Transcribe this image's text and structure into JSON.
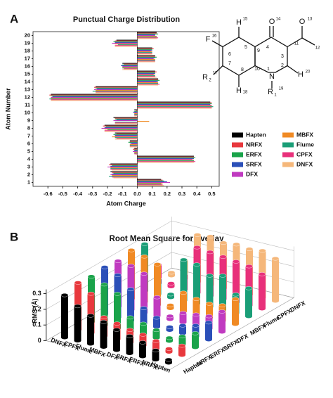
{
  "chart_data": [
    {
      "type": "barh",
      "panel": "A",
      "title": "Punctual Charge Distribution",
      "xlabel": "Atom Charge",
      "ylabel": "Atom Number",
      "categories": [
        "1",
        "2",
        "3",
        "4",
        "5",
        "6",
        "7",
        "8",
        "9",
        "10",
        "11",
        "12",
        "13",
        "14",
        "15",
        "16",
        "17",
        "18",
        "19",
        "20"
      ],
      "xlim": [
        -0.7,
        0.55
      ],
      "xticks": [
        -0.6,
        -0.5,
        -0.4,
        -0.3,
        -0.2,
        -0.1,
        {
          "value": 0,
          "label": "0.0"
        },
        0.1,
        0.2,
        0.3,
        0.4,
        0.5
      ],
      "series": [
        {
          "name": "Hapten",
          "color": "#000000",
          "values": [
            0.16,
            -0.18,
            -0.18,
            0.38,
            -0.02,
            -0.05,
            -0.15,
            -0.22,
            -0.16,
            -0.02,
            0.49,
            -0.58,
            -0.28,
            0.14,
            0.12,
            -0.1,
            0.12,
            0.1,
            -0.14,
            0.13
          ]
        },
        {
          "name": "NRFX",
          "color": "#e8383d",
          "values": [
            0.17,
            -0.17,
            -0.19,
            0.38,
            -0.03,
            -0.05,
            -0.14,
            -0.23,
            -0.15,
            -0.01,
            0.5,
            -0.59,
            -0.29,
            0.14,
            0.13,
            -0.09,
            0.12,
            0.11,
            -0.15,
            0.13
          ]
        },
        {
          "name": "ERFX",
          "color": "#1aa34a",
          "values": [
            0.18,
            -0.16,
            -0.17,
            0.39,
            -0.02,
            -0.06,
            -0.16,
            -0.21,
            -0.15,
            -0.02,
            0.5,
            -0.58,
            -0.28,
            0.15,
            0.12,
            -0.1,
            0.13,
            0.1,
            -0.16,
            0.14
          ]
        },
        {
          "name": "SRFX",
          "color": "#2b4fb8",
          "values": [
            0.2,
            -0.17,
            -0.18,
            0.38,
            -0.02,
            -0.05,
            -0.15,
            -0.22,
            -0.14,
            -0.03,
            0.49,
            -0.57,
            -0.27,
            0.14,
            0.12,
            -0.11,
            0.12,
            0.1,
            -0.15,
            0.12
          ]
        },
        {
          "name": "DFX",
          "color": "#c03ac0",
          "values": [
            0.22,
            -0.18,
            -0.2,
            0.37,
            -0.03,
            -0.04,
            -0.15,
            -0.24,
            -0.16,
            -0.02,
            0.5,
            -0.58,
            -0.29,
            0.13,
            0.11,
            -0.1,
            0.11,
            0.09,
            -0.17,
            0.12
          ]
        },
        {
          "name": "MBFX",
          "color": "#f08a24",
          "values": [
            0.17,
            -0.17,
            -0.18,
            0.38,
            -0.02,
            -0.05,
            -0.17,
            -0.22,
            0.08,
            -0.02,
            0.5,
            -0.58,
            -0.28,
            0.14,
            0.12,
            -0.1,
            0.12,
            0.1,
            -0.15,
            0.13
          ]
        },
        {
          "name": "Flume",
          "color": "#1a9e77",
          "values": [
            0.16,
            -0.19,
            -0.18,
            0.38,
            -0.02,
            -0.05,
            -0.15,
            -0.2,
            -0.15,
            -0.02,
            0.51,
            -0.59,
            -0.3,
            0.14,
            0.12,
            -0.1,
            0.12,
            0.1,
            -0.13,
            0.13
          ]
        },
        {
          "name": "CPFX",
          "color": "#e8307a",
          "values": [
            0.17,
            -0.17,
            -0.18,
            0.39,
            -0.02,
            -0.05,
            -0.14,
            -0.22,
            -0.15,
            -0.02,
            0.5,
            -0.58,
            -0.28,
            0.15,
            0.12,
            -0.09,
            0.12,
            0.1,
            -0.15,
            0.14
          ]
        },
        {
          "name": "DNFX",
          "color": "#f5b77a",
          "values": [
            0.18,
            -0.16,
            -0.17,
            0.38,
            -0.01,
            -0.05,
            -0.15,
            -0.22,
            -0.15,
            -0.02,
            0.5,
            -0.58,
            -0.28,
            0.14,
            0.13,
            -0.1,
            0.12,
            0.1,
            -0.15,
            0.13
          ]
        }
      ]
    },
    {
      "type": "bar3d",
      "panel": "B",
      "title": "Root Mean Square for overlay",
      "ylabel": "RMS (Å)",
      "categories": [
        "DNFX",
        "CPFX",
        "Flume",
        "MBFX",
        "DFX",
        "SRFX",
        "ERFX",
        "NRFX",
        "Hapten"
      ],
      "ylim": [
        0,
        0.3
      ],
      "yticks": [
        0,
        0.1,
        0.2,
        0.3
      ],
      "series": [
        {
          "name": "Hapten",
          "color": "#000000",
          "values": [
            0.27,
            0.22,
            0.18,
            0.16,
            0.13,
            0.11,
            0.09,
            0.06,
            0.02
          ]
        },
        {
          "name": "NRFX",
          "color": "#e8383d",
          "values": [
            0.3,
            0.25,
            0.12,
            0.1,
            0.08,
            0.07,
            0.05,
            0.02,
            0.06
          ]
        },
        {
          "name": "ERFX",
          "color": "#1aa34a",
          "values": [
            0.29,
            0.26,
            0.22,
            0.09,
            0.07,
            0.05,
            0.02,
            0.05,
            0.09
          ]
        },
        {
          "name": "SRFX",
          "color": "#2b4fb8",
          "values": [
            0.3,
            0.27,
            0.2,
            0.1,
            0.06,
            0.02,
            0.05,
            0.07,
            0.11
          ]
        },
        {
          "name": "DFX",
          "color": "#c03ac0",
          "values": [
            0.29,
            0.28,
            0.25,
            0.12,
            0.02,
            0.06,
            0.07,
            0.08,
            0.13
          ]
        },
        {
          "name": "MBFX",
          "color": "#f08a24",
          "values": [
            0.31,
            0.29,
            0.26,
            0.02,
            0.12,
            0.1,
            0.09,
            0.1,
            0.16
          ]
        },
        {
          "name": "Flume",
          "color": "#1a9e77",
          "values": [
            0.3,
            0.1,
            0.02,
            0.26,
            0.25,
            0.2,
            0.22,
            0.12,
            0.18
          ]
        },
        {
          "name": "CPFX",
          "color": "#e8307a",
          "values": [
            0.12,
            0.02,
            0.1,
            0.29,
            0.28,
            0.27,
            0.26,
            0.25,
            0.22
          ]
        },
        {
          "name": "DNFX",
          "color": "#f5b77a",
          "values": [
            0.02,
            0.12,
            0.3,
            0.31,
            0.29,
            0.3,
            0.29,
            0.3,
            0.27
          ]
        }
      ]
    }
  ],
  "structure": {
    "labels": [
      "H",
      "15",
      "O",
      "14",
      "O",
      "13",
      "11",
      "12",
      "4",
      "3",
      "2",
      "1",
      "N",
      "H",
      "20",
      "5",
      "6",
      "7",
      "8",
      "9",
      "10",
      "F",
      "16",
      "R",
      "2",
      "17",
      "H",
      "18",
      "R",
      "1",
      "19"
    ]
  }
}
